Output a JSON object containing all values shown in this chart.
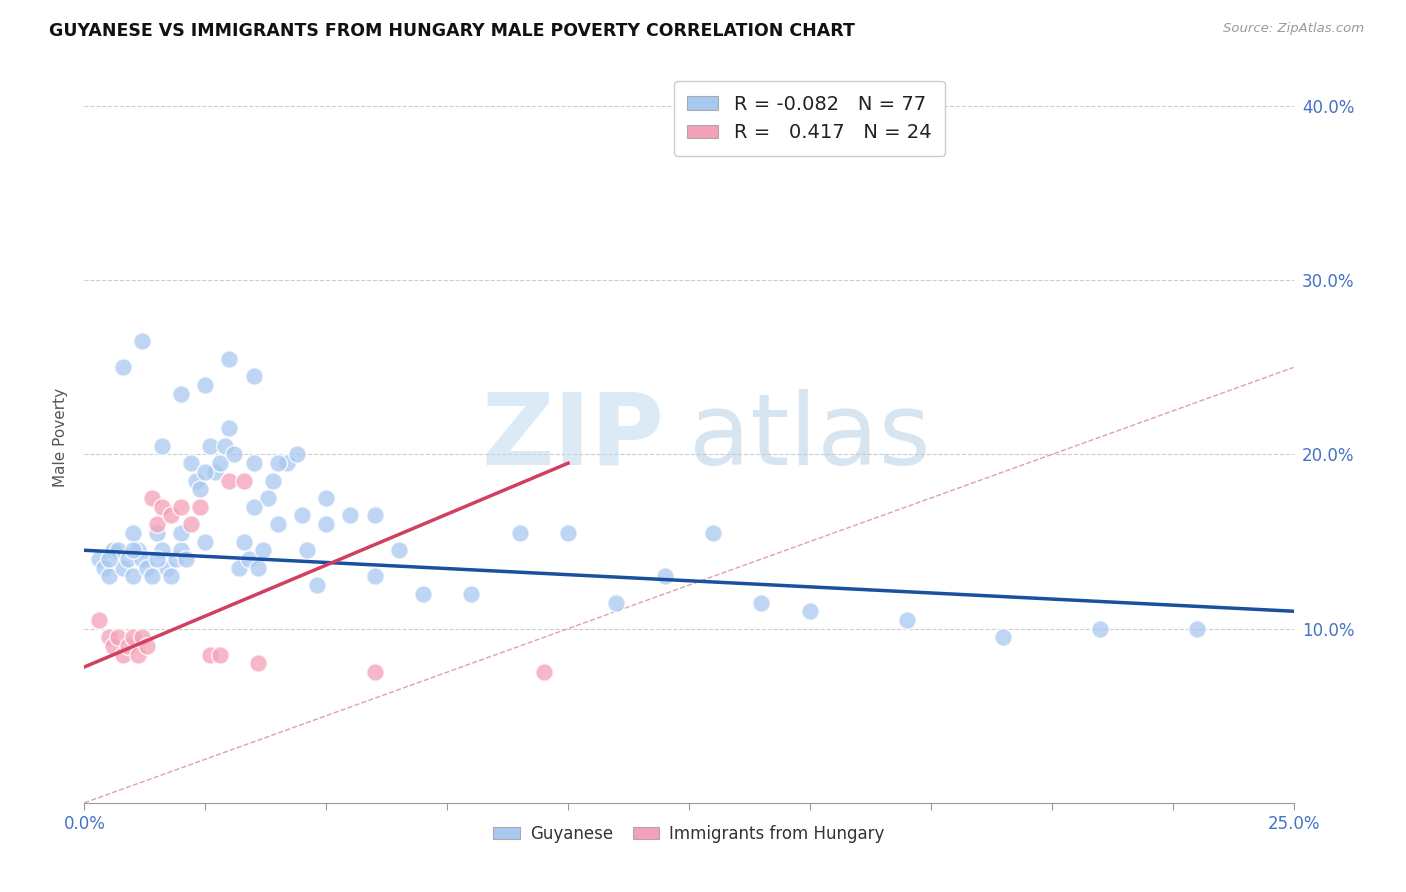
{
  "title": "GUYANESE VS IMMIGRANTS FROM HUNGARY MALE POVERTY CORRELATION CHART",
  "source": "Source: ZipAtlas.com",
  "ylabel_left": "Male Poverty",
  "xlim": [
    0.0,
    0.25
  ],
  "ylim": [
    0.0,
    0.42
  ],
  "xtick_values": [
    0.0,
    0.025,
    0.05,
    0.075,
    0.1,
    0.125,
    0.15,
    0.175,
    0.2,
    0.225,
    0.25
  ],
  "xtick_show": [
    0.0,
    0.25
  ],
  "xtick_labels_show": [
    "0.0%",
    "25.0%"
  ],
  "ytick_values": [
    0.1,
    0.2,
    0.3,
    0.4
  ],
  "ytick_labels": [
    "10.0%",
    "20.0%",
    "30.0%",
    "40.0%"
  ],
  "blue_color": "#A8C8F0",
  "pink_color": "#F4A0B8",
  "blue_line_color": "#1A50A0",
  "pink_line_color": "#D04060",
  "diagonal_color": "#E0A0B0",
  "legend_R1": "-0.082",
  "legend_N1": "77",
  "legend_R2": "0.417",
  "legend_N2": "24",
  "legend_label1": "Guyanese",
  "legend_label2": "Immigrants from Hungary",
  "blue_scatter_x": [
    0.003,
    0.004,
    0.005,
    0.006,
    0.007,
    0.008,
    0.009,
    0.01,
    0.01,
    0.011,
    0.012,
    0.013,
    0.014,
    0.015,
    0.016,
    0.017,
    0.018,
    0.019,
    0.02,
    0.021,
    0.022,
    0.023,
    0.024,
    0.025,
    0.026,
    0.027,
    0.028,
    0.029,
    0.03,
    0.031,
    0.032,
    0.033,
    0.034,
    0.035,
    0.036,
    0.037,
    0.038,
    0.039,
    0.04,
    0.042,
    0.044,
    0.046,
    0.048,
    0.05,
    0.055,
    0.06,
    0.065,
    0.07,
    0.08,
    0.09,
    0.1,
    0.11,
    0.12,
    0.13,
    0.14,
    0.15,
    0.17,
    0.19,
    0.21,
    0.23,
    0.008,
    0.012,
    0.016,
    0.02,
    0.025,
    0.03,
    0.035,
    0.04,
    0.05,
    0.06,
    0.005,
    0.01,
    0.015,
    0.02,
    0.025,
    0.035,
    0.045
  ],
  "blue_scatter_y": [
    0.14,
    0.135,
    0.13,
    0.145,
    0.145,
    0.135,
    0.14,
    0.155,
    0.13,
    0.145,
    0.14,
    0.135,
    0.13,
    0.155,
    0.145,
    0.135,
    0.13,
    0.14,
    0.145,
    0.14,
    0.195,
    0.185,
    0.18,
    0.15,
    0.205,
    0.19,
    0.195,
    0.205,
    0.215,
    0.2,
    0.135,
    0.15,
    0.14,
    0.195,
    0.135,
    0.145,
    0.175,
    0.185,
    0.16,
    0.195,
    0.2,
    0.145,
    0.125,
    0.16,
    0.165,
    0.13,
    0.145,
    0.12,
    0.12,
    0.155,
    0.155,
    0.115,
    0.13,
    0.155,
    0.115,
    0.11,
    0.105,
    0.095,
    0.1,
    0.1,
    0.25,
    0.265,
    0.205,
    0.235,
    0.24,
    0.255,
    0.245,
    0.195,
    0.175,
    0.165,
    0.14,
    0.145,
    0.14,
    0.155,
    0.19,
    0.17,
    0.165
  ],
  "pink_scatter_x": [
    0.003,
    0.005,
    0.006,
    0.007,
    0.008,
    0.009,
    0.01,
    0.011,
    0.012,
    0.013,
    0.014,
    0.015,
    0.016,
    0.018,
    0.02,
    0.022,
    0.024,
    0.026,
    0.028,
    0.03,
    0.033,
    0.036,
    0.06,
    0.095
  ],
  "pink_scatter_y": [
    0.105,
    0.095,
    0.09,
    0.095,
    0.085,
    0.09,
    0.095,
    0.085,
    0.095,
    0.09,
    0.175,
    0.16,
    0.17,
    0.165,
    0.17,
    0.16,
    0.17,
    0.085,
    0.085,
    0.185,
    0.185,
    0.08,
    0.075,
    0.075
  ],
  "blue_line_x": [
    0.0,
    0.25
  ],
  "blue_line_y": [
    0.145,
    0.11
  ],
  "pink_line_x": [
    0.0,
    0.1
  ],
  "pink_line_y": [
    0.078,
    0.195
  ]
}
